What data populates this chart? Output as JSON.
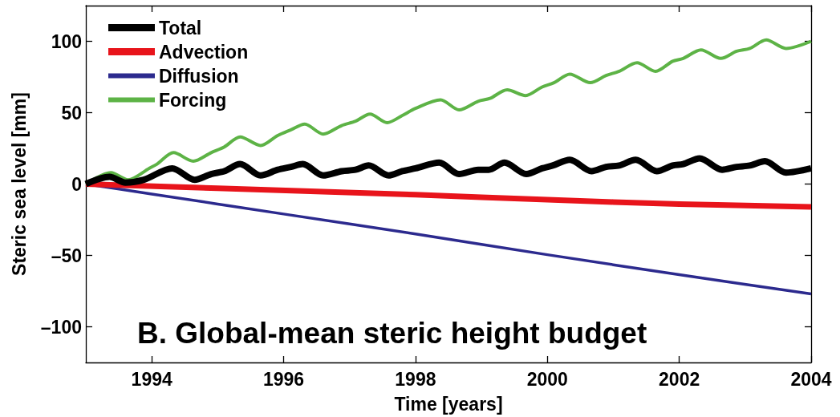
{
  "chart_data": {
    "type": "line",
    "title": "B. Global-mean steric height budget",
    "xlabel": "Time [years]",
    "ylabel": "Steric sea level [mm]",
    "xlim": [
      1993,
      2004
    ],
    "xticks": [
      1994,
      1996,
      1998,
      2000,
      2002,
      2004
    ],
    "ylim": [
      -125,
      125
    ],
    "yticks": [
      {
        "value": -100,
        "label": "–100"
      },
      {
        "value": -50,
        "label": "–50"
      },
      0,
      50,
      100
    ],
    "legend": "top left",
    "marker": "none",
    "line_style": "solid",
    "series": [
      {
        "name": "Total",
        "color": "#000000",
        "x": [
          1993.0,
          1993.36,
          1993.6,
          1993.88,
          1994.31,
          1994.65,
          1994.9,
          1995.1,
          1995.34,
          1995.65,
          1995.91,
          1996.11,
          1996.29,
          1996.6,
          1996.88,
          1997.09,
          1997.29,
          1997.59,
          1997.8,
          1998.0,
          1998.36,
          1998.66,
          1998.95,
          1999.11,
          1999.35,
          1999.68,
          1999.92,
          2000.08,
          2000.34,
          2000.67,
          2000.89,
          2001.09,
          2001.34,
          2001.66,
          2001.9,
          2002.06,
          2002.31,
          2002.65,
          2002.87,
          2003.07,
          2003.3,
          2003.62,
          2004.0
        ],
        "values": [
          0,
          5,
          1,
          3,
          11,
          3,
          7,
          9,
          14,
          6,
          10,
          12,
          14,
          6,
          9,
          10,
          13,
          6,
          9,
          11,
          15,
          7,
          10,
          10,
          15,
          7,
          11,
          13,
          17,
          9,
          12,
          13,
          17,
          9,
          13,
          14,
          18,
          10,
          12,
          13,
          16,
          8,
          11
        ]
      },
      {
        "name": "Advection",
        "color": "#e8141b",
        "x": [
          1993,
          1995,
          1998,
          2000,
          2002,
          2004
        ],
        "values": [
          0,
          -3,
          -7.5,
          -11,
          -14,
          -16
        ]
      },
      {
        "name": "Diffusion",
        "color": "#2c2a8e",
        "x": [
          1993,
          1994,
          1996,
          1998,
          2000,
          2002,
          2004
        ],
        "values": [
          0,
          -7,
          -21,
          -35,
          -49.5,
          -63.5,
          -77
        ]
      },
      {
        "name": "Forcing",
        "color": "#5db346",
        "x": [
          1993.0,
          1993.38,
          1993.64,
          1993.96,
          1994.08,
          1994.33,
          1994.63,
          1994.9,
          1995.1,
          1995.34,
          1995.65,
          1995.91,
          1996.11,
          1996.32,
          1996.6,
          1996.88,
          1997.09,
          1997.31,
          1997.57,
          1997.8,
          1998.0,
          1998.38,
          1998.66,
          1998.95,
          1999.13,
          1999.39,
          1999.67,
          1999.92,
          2000.1,
          2000.34,
          2000.65,
          2000.89,
          2001.09,
          2001.36,
          2001.64,
          2001.9,
          2002.06,
          2002.33,
          2002.63,
          2002.87,
          2003.07,
          2003.32,
          2003.62,
          2004.0
        ],
        "values": [
          0,
          8,
          3,
          11,
          14,
          22,
          16,
          22,
          26,
          33,
          27,
          34,
          38,
          42,
          35,
          41,
          44,
          49,
          43,
          48,
          53,
          59,
          52,
          58,
          60,
          66,
          62,
          68,
          71,
          77,
          71,
          76,
          79,
          85,
          79,
          86,
          88,
          94,
          88,
          93,
          95,
          101,
          95,
          100
        ]
      }
    ]
  }
}
